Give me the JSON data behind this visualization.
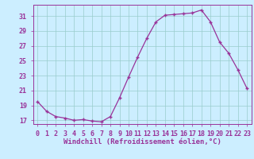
{
  "x": [
    0,
    1,
    2,
    3,
    4,
    5,
    6,
    7,
    8,
    9,
    10,
    11,
    12,
    13,
    14,
    15,
    16,
    17,
    18,
    19,
    20,
    21,
    22,
    23
  ],
  "y": [
    19.5,
    18.2,
    17.5,
    17.3,
    17.0,
    17.1,
    16.9,
    16.8,
    17.5,
    20.0,
    22.8,
    25.5,
    28.0,
    30.2,
    31.1,
    31.2,
    31.3,
    31.4,
    31.8,
    30.2,
    27.5,
    26.0,
    23.8,
    21.3
  ],
  "line_color": "#993399",
  "marker": "+",
  "marker_size": 3.5,
  "background_color": "#cceeff",
  "grid_color": "#99cccc",
  "xlabel": "Windchill (Refroidissement éolien,°C)",
  "xlabel_fontsize": 6.5,
  "tick_fontsize": 6.0,
  "ylim": [
    16.5,
    32.5
  ],
  "yticks": [
    17,
    19,
    21,
    23,
    25,
    27,
    29,
    31
  ],
  "xlim": [
    -0.5,
    23.5
  ],
  "xticks": [
    0,
    1,
    2,
    3,
    4,
    5,
    6,
    7,
    8,
    9,
    10,
    11,
    12,
    13,
    14,
    15,
    16,
    17,
    18,
    19,
    20,
    21,
    22,
    23
  ],
  "linewidth": 0.9
}
